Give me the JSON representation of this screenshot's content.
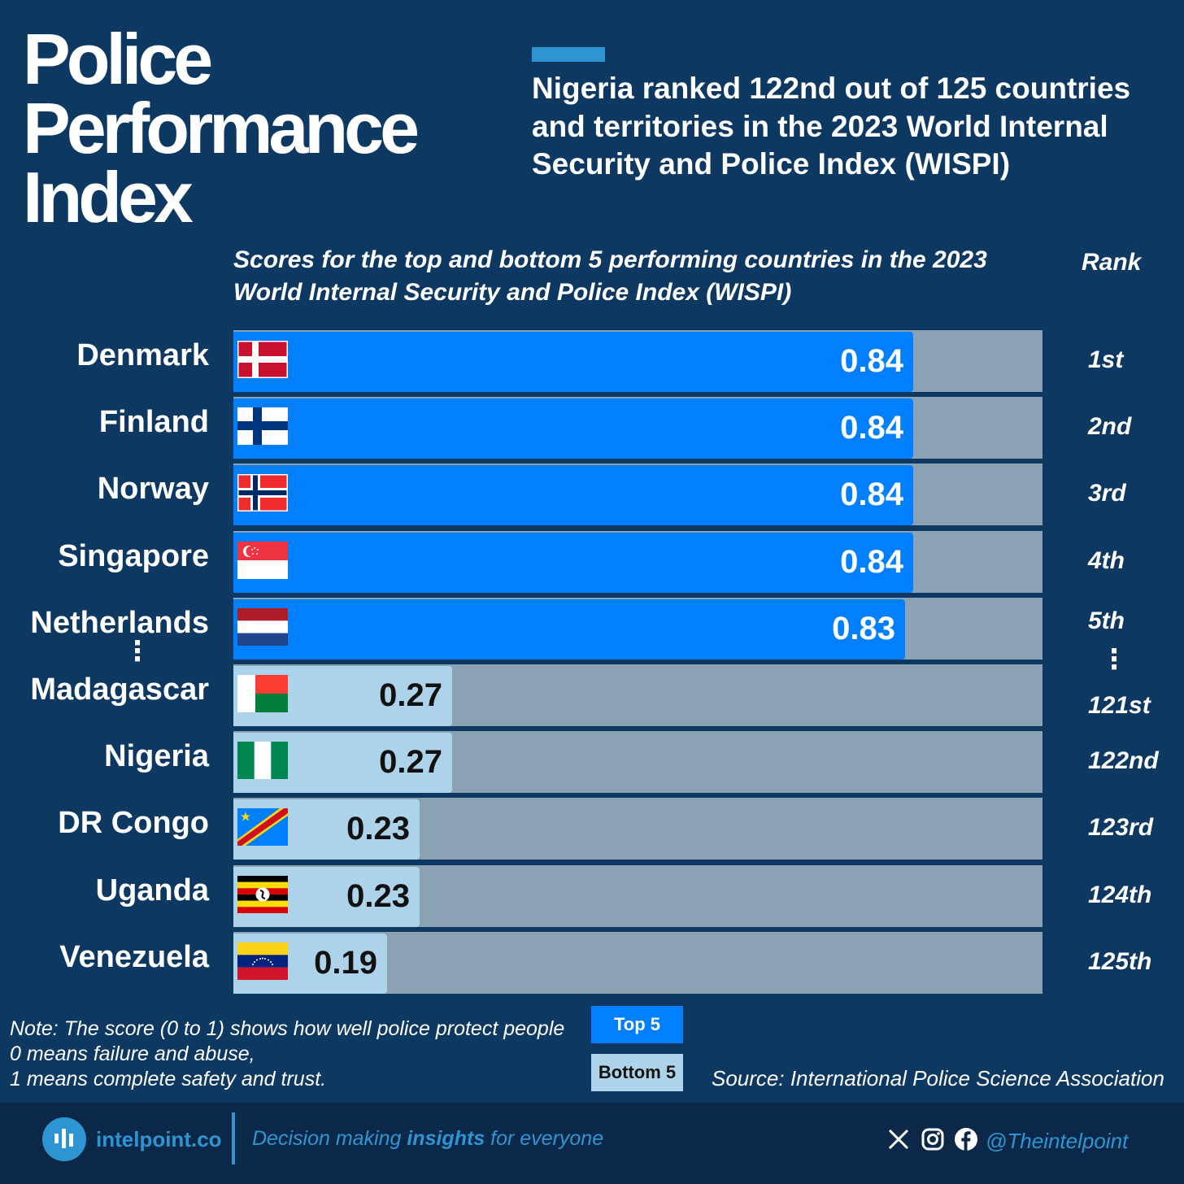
{
  "title": {
    "line1": "Police",
    "line2": "Performance",
    "line3": "Index"
  },
  "headline": "Nigeria ranked 122nd out of 125 countries and territories in the 2023 World Internal Security and Police Index (WISPI)",
  "subtitle": "Scores for the top and bottom 5 performing countries in the 2023 World Internal Security and Police Index (WISPI)",
  "rank_header": "Rank",
  "chart_data": {
    "type": "bar",
    "orientation": "horizontal",
    "title": "Scores for the top and bottom 5 performing countries in the 2023 World Internal Security and Police Index (WISPI)",
    "xlim": [
      0,
      1
    ],
    "categories": [
      "Denmark",
      "Finland",
      "Norway",
      "Singapore",
      "Netherlands",
      "Madagascar",
      "Nigeria",
      "DR Congo",
      "Uganda",
      "Venezuela"
    ],
    "values": [
      0.84,
      0.84,
      0.84,
      0.84,
      0.83,
      0.27,
      0.27,
      0.23,
      0.23,
      0.19
    ],
    "value_labels": [
      "0.84",
      "0.84",
      "0.84",
      "0.84",
      "0.83",
      "0.27",
      "0.27",
      "0.23",
      "0.23",
      "0.19"
    ],
    "ranks": [
      "1st",
      "2nd",
      "3rd",
      "4th",
      "5th",
      "121st",
      "122nd",
      "123rd",
      "124th",
      "125th"
    ],
    "groups": [
      "top",
      "top",
      "top",
      "top",
      "top",
      "bottom",
      "bottom",
      "bottom",
      "bottom",
      "bottom"
    ],
    "flags": [
      "denmark-flag",
      "finland-flag",
      "norway-flag",
      "singapore-flag",
      "netherlands-flag",
      "madagascar-flag",
      "nigeria-flag",
      "dr-congo-flag",
      "uganda-flag",
      "venezuela-flag"
    ],
    "legend": [
      {
        "label": "Top 5",
        "color": "#0080ff"
      },
      {
        "label": "Bottom 5",
        "color": "#acd3ea"
      }
    ]
  },
  "note": {
    "line1": "Note: The score (0 to 1) shows how well police protect people",
    "line2": "0 means failure and abuse,",
    "line3": "1 means complete safety and trust."
  },
  "legend": {
    "top_label": "Top 5",
    "bottom_label": "Bottom 5"
  },
  "source": "Source: International Police Science Association",
  "footer": {
    "brand": "intelpoint.co",
    "tagline_pre": "Decision making ",
    "tagline_bold": "insights",
    "tagline_post": " for everyone",
    "handle": "@Theintelpoint"
  },
  "colors": {
    "background": "#0d3862",
    "top_bar": "#0080ff",
    "bottom_bar": "#acd3ea",
    "track": "#8ba1b4",
    "accent": "#2e95d3",
    "footer": "#0b2849"
  }
}
